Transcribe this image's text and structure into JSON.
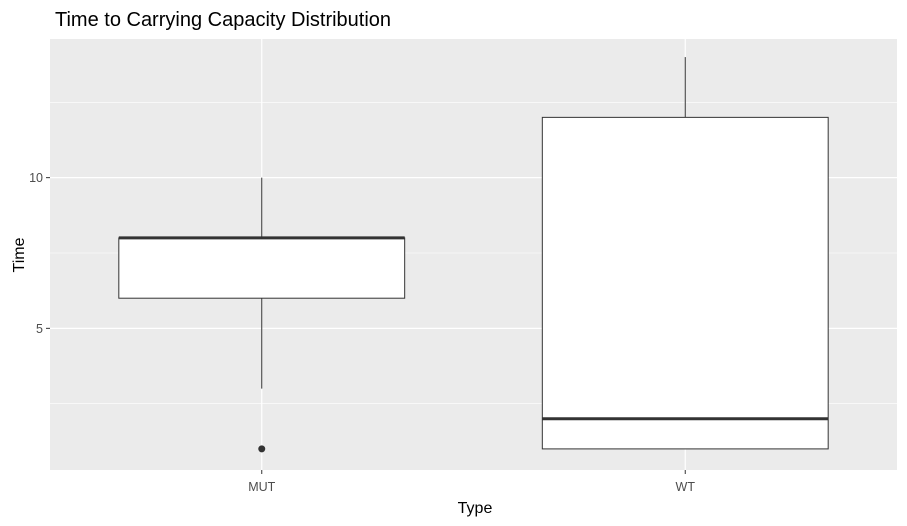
{
  "chart_data": {
    "type": "box",
    "title": "Time to Carrying Capacity Distribution",
    "xlabel": "Type",
    "ylabel": "Time",
    "categories": [
      "MUT",
      "WT"
    ],
    "boxes": [
      {
        "category": "MUT",
        "whisker_low": 3,
        "q1": 6,
        "median": 8,
        "q3": 8,
        "whisker_high": 10,
        "outliers": [
          1
        ]
      },
      {
        "category": "WT",
        "whisker_low": 1,
        "q1": 1,
        "median": 2,
        "q3": 12,
        "whisker_high": 14,
        "outliers": []
      }
    ],
    "y_ticks": [
      5,
      10
    ],
    "ylim": [
      0.3,
      14.6
    ],
    "grid": true,
    "colors": {
      "panel_background": "#ebebeb",
      "grid_line": "#ffffff",
      "box_fill": "#ffffff",
      "box_stroke": "#333333",
      "median_line": "#333333",
      "outlier": "#333333"
    }
  }
}
